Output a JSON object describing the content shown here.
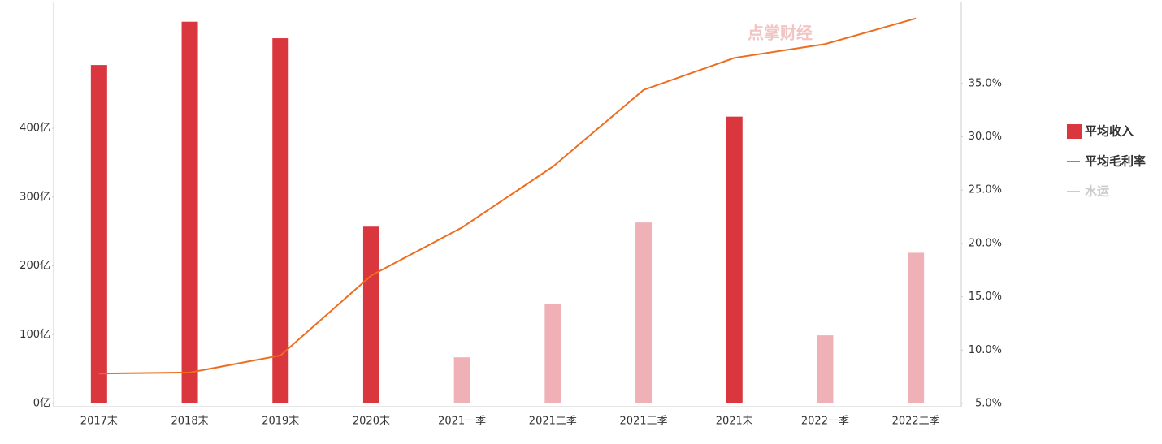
{
  "chart_data": {
    "type": "bar",
    "watermark": "点掌财经",
    "categories": [
      "2017末",
      "2018末",
      "2019末",
      "2020末",
      "2021一季",
      "2021二季",
      "2021三季",
      "2021末",
      "2022一季",
      "2022二季"
    ],
    "series": [
      {
        "name": "平均收入",
        "type": "bar",
        "color": "#d9363e",
        "colors": [
          "#d9363e",
          "#d9363e",
          "#d9363e",
          "#d9363e",
          "#efb1b5",
          "#efb1b5",
          "#efb1b5",
          "#d9363e",
          "#efb1b5",
          "#efb1b5"
        ],
        "values": [
          492,
          555,
          531,
          257,
          67,
          145,
          263,
          417,
          99,
          219
        ]
      },
      {
        "name": "平均毛利率",
        "type": "line",
        "axis": "y2",
        "color": "#ed6d1f",
        "values": [
          7.8,
          7.9,
          9.5,
          17.0,
          21.5,
          27.2,
          34.4,
          37.4,
          38.7,
          41.1
        ]
      },
      {
        "name": "水运",
        "type": "line",
        "axis": "y2",
        "color": "#cccccc",
        "hidden": true,
        "values": [
          null,
          null,
          null,
          null,
          null,
          null,
          null,
          null,
          null,
          null
        ]
      }
    ],
    "ylim": [
      0,
      583
    ],
    "yticks": [
      {
        "value": 0,
        "label": "0亿"
      },
      {
        "value": 100,
        "label": "100亿"
      },
      {
        "value": 200,
        "label": "200亿"
      },
      {
        "value": 300,
        "label": "300亿"
      },
      {
        "value": 400,
        "label": "400亿"
      }
    ],
    "y2lim": [
      5,
      42.6
    ],
    "y2ticks": [
      {
        "value": 5,
        "label": "5.0%"
      },
      {
        "value": 10,
        "label": "10.0%"
      },
      {
        "value": 15,
        "label": "15.0%"
      },
      {
        "value": 20,
        "label": "20.0%"
      },
      {
        "value": 25,
        "label": "25.0%"
      },
      {
        "value": 30,
        "label": "30.0%"
      },
      {
        "value": 35,
        "label": "35.0%"
      }
    ],
    "legend": "right"
  }
}
